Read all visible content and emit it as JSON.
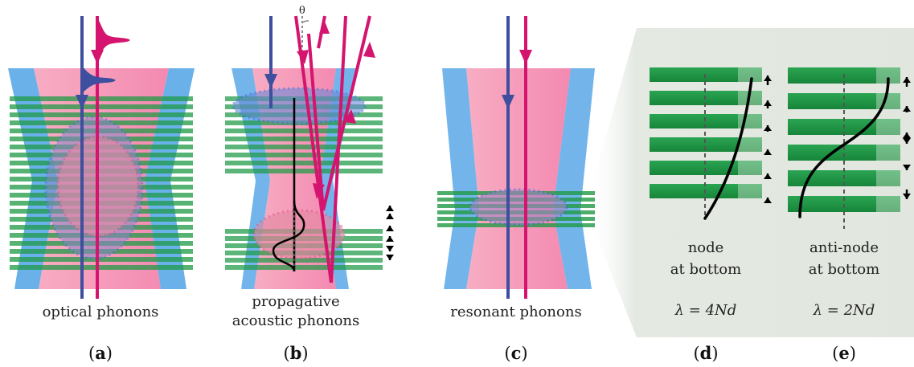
{
  "panels": {
    "a": {
      "caption": "optical phonons",
      "letter": "a"
    },
    "b": {
      "caption_line1": "propagative",
      "caption_line2": "acoustic phonons",
      "letter": "b",
      "angle_symbol": "θ"
    },
    "c": {
      "caption": "resonant phonons",
      "letter": "c"
    },
    "d": {
      "caption_line1": "node",
      "caption_line2": "at bottom",
      "formula": "λ = 4Nd",
      "letter": "d"
    },
    "e": {
      "caption_line1": "anti-node",
      "caption_line2": "at bottom",
      "formula": "λ = 2Nd",
      "letter": "e"
    }
  },
  "colors": {
    "laser_blue": "#3d4f9e",
    "laser_pink": "#d4146e",
    "beam_blue": "#5aa8e8",
    "beam_pink": "#f59ab8",
    "layer_green": "#1f9a45",
    "zone_blue": "#3d6fe0",
    "zone_pink": "#e05a8a",
    "inset_bg": "#e3e8e1"
  }
}
